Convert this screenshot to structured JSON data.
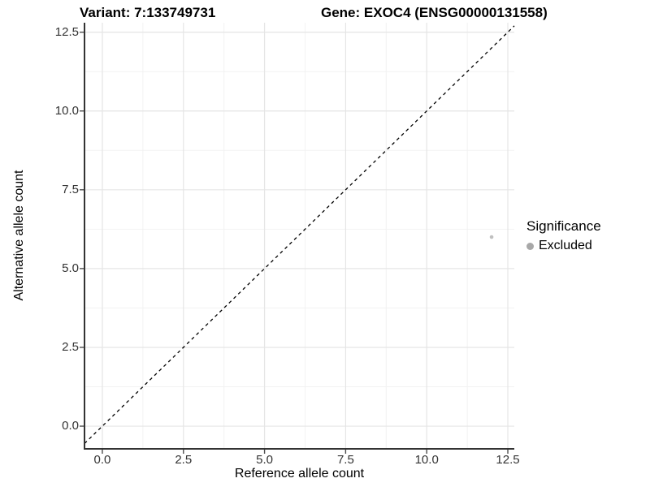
{
  "chart_data": {
    "type": "scatter",
    "title_variant": "Variant: 7:133749731",
    "title_gene": "Gene: EXOC4 (ENSG00000131558)",
    "xlabel": "Reference allele count",
    "ylabel": "Alternative allele count",
    "x_ticks": [
      0,
      2.5,
      5,
      7.5,
      10,
      12.5
    ],
    "x_tick_labels": [
      "0.0",
      "2.5",
      "5.0",
      "7.5",
      "10.0",
      "12.5"
    ],
    "y_ticks": [
      0,
      2.5,
      5,
      7.5,
      10,
      12.5
    ],
    "y_tick_labels": [
      "0.0",
      "2.5",
      "5.0",
      "7.5",
      "10.0",
      "12.5"
    ],
    "x_minor_ticks": [
      1.25,
      3.75,
      6.25,
      8.75,
      11.25
    ],
    "y_minor_ticks": [
      1.25,
      3.75,
      6.25,
      8.75,
      11.25
    ],
    "xlim": [
      -0.55,
      12.7
    ],
    "ylim": [
      -0.72,
      12.8
    ],
    "grid": true,
    "abline": {
      "slope": 1,
      "intercept": 0,
      "style": "dashed",
      "color": "#000000"
    },
    "series": [
      {
        "name": "Excluded",
        "color": "#c0c0c0",
        "points": [
          {
            "x": 12,
            "y": 6
          }
        ]
      }
    ],
    "legend": {
      "position": "right",
      "title": "Significance",
      "entries": [
        {
          "label": "Excluded",
          "color": "#a8a8a8"
        }
      ]
    },
    "style": {
      "grid_major": "#e5e5e5",
      "grid_minor": "#f2f2f2",
      "axis_line": "#333333",
      "tick_mark": "#4d4d4d",
      "point_radius": 2.3,
      "background": "#ffffff"
    }
  }
}
